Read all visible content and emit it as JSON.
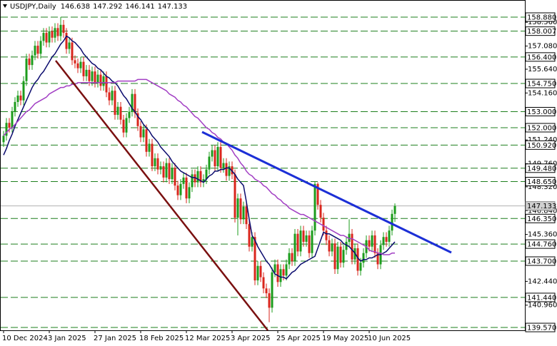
{
  "chart_data": {
    "type": "candlestick",
    "title": "USDJPY,Daily",
    "categories": [
      "10 Dec 2024",
      null,
      null,
      null,
      null,
      null,
      null,
      null,
      null,
      null,
      null,
      null,
      null,
      null,
      null,
      null,
      "3 Jan 2025",
      null,
      null,
      null,
      null,
      null,
      null,
      null,
      null,
      null,
      null,
      null,
      null,
      null,
      null,
      null,
      "27 Jan 2025",
      null,
      null,
      null,
      null,
      null,
      null,
      null,
      null,
      null,
      null,
      null,
      null,
      null,
      null,
      null,
      "18 Feb 2025",
      null,
      null,
      null,
      null,
      null,
      null,
      null,
      null,
      null,
      null,
      null,
      null,
      null,
      null,
      null,
      "12 Mar 2025",
      null,
      null,
      null,
      null,
      null,
      null,
      null,
      null,
      null,
      null,
      null,
      null,
      null,
      null,
      null,
      "3 Apr 2025",
      null,
      null,
      null,
      null,
      null,
      null,
      null,
      null,
      null,
      null,
      null,
      null,
      null,
      null,
      null,
      "25 Apr 2025",
      null,
      null,
      null,
      null,
      null,
      null,
      null,
      null,
      null,
      null,
      null,
      null,
      null,
      null,
      null,
      "19 May 2025",
      null,
      null,
      null,
      null,
      null,
      null,
      null,
      null,
      null,
      null,
      null,
      null,
      null,
      null,
      null,
      "10 Jun 2025",
      null,
      null,
      null,
      null,
      null,
      null,
      null,
      null,
      null
    ],
    "open": [
      151.1,
      151.5,
      152.3,
      152.0,
      153.0,
      153.6,
      154.0,
      153.7,
      154.9,
      156.3,
      155.9,
      156.5,
      157.1,
      156.6,
      157.4,
      157.9,
      157.3,
      158.0,
      157.6,
      158.2,
      157.7,
      158.4,
      157.9,
      156.9,
      157.3,
      156.2,
      156.0,
      155.7,
      156.1,
      155.2,
      155.6,
      154.9,
      155.5,
      154.8,
      155.3,
      154.6,
      155.2,
      154.2,
      153.7,
      154.3,
      152.8,
      153.3,
      152.5,
      151.7,
      152.6,
      153.0,
      154.1,
      152.9,
      152.1,
      151.4,
      151.9,
      150.5,
      151.0,
      149.6,
      150.1,
      149.4,
      149.6,
      148.9,
      149.8,
      148.8,
      149.5,
      148.4,
      147.8,
      148.5,
      148.9,
      147.6,
      148.3,
      149.1,
      148.6,
      149.3,
      148.6,
      148.8,
      149.4,
      150.2,
      150.6,
      149.6,
      150.8,
      149.5,
      149.8,
      149.0,
      149.6,
      149.1,
      146.4,
      147.6,
      146.3,
      147.1,
      146.0,
      144.6,
      145.2,
      142.5,
      143.4,
      142.7,
      142.0,
      141.7,
      140.8,
      143.0,
      143.5,
      142.4,
      143.2,
      142.8,
      143.5,
      144.2,
      143.7,
      145.4,
      144.3,
      145.6,
      144.9,
      145.3,
      144.2,
      145.6,
      148.5,
      147.2,
      146.4,
      145.6,
      145.0,
      144.3,
      144.8,
      143.2,
      144.6,
      143.6,
      144.4,
      144.9,
      145.4,
      143.8,
      144.5,
      143.1,
      143.6,
      144.2,
      145.0,
      144.6,
      145.3,
      144.2,
      143.5,
      144.7,
      145.2,
      144.9,
      145.6,
      146.638
    ],
    "high": [
      151.8,
      152.6,
      152.6,
      153.3,
      153.9,
      154.3,
      154.3,
      155.2,
      156.6,
      156.6,
      156.8,
      157.4,
      157.4,
      157.7,
      158.2,
      158.2,
      158.3,
      158.3,
      158.5,
      158.5,
      158.88,
      158.7,
      158.2,
      157.6,
      157.6,
      156.5,
      156.3,
      156.4,
      156.4,
      155.9,
      155.9,
      155.8,
      155.8,
      155.6,
      155.6,
      155.5,
      155.5,
      154.5,
      154.6,
      154.6,
      153.6,
      153.6,
      152.8,
      152.9,
      153.3,
      154.4,
      154.4,
      153.2,
      152.4,
      152.2,
      152.2,
      151.3,
      151.3,
      150.4,
      150.4,
      149.9,
      149.9,
      150.1,
      150.1,
      149.8,
      149.8,
      148.7,
      148.8,
      149.2,
      149.2,
      148.6,
      149.4,
      149.4,
      149.6,
      149.6,
      149.1,
      149.7,
      150.5,
      150.9,
      150.9,
      151.1,
      151.1,
      150.1,
      150.1,
      149.9,
      149.9,
      149.4,
      147.9,
      147.9,
      147.4,
      147.4,
      146.3,
      145.5,
      145.5,
      143.7,
      143.7,
      143.0,
      142.3,
      142.0,
      143.3,
      143.8,
      143.8,
      143.5,
      143.5,
      143.8,
      144.5,
      144.5,
      145.7,
      145.7,
      145.9,
      145.9,
      145.6,
      145.6,
      145.9,
      148.65,
      148.6,
      147.5,
      146.7,
      145.9,
      145.3,
      145.1,
      145.1,
      144.9,
      144.9,
      144.7,
      145.2,
      146.3,
      145.7,
      144.8,
      144.8,
      143.9,
      144.5,
      145.3,
      145.3,
      145.6,
      145.6,
      144.5,
      145.0,
      145.5,
      145.5,
      145.9,
      146.9,
      147.292
    ],
    "low": [
      150.8,
      151.2,
      151.7,
      151.7,
      152.7,
      153.3,
      153.4,
      153.4,
      154.6,
      155.6,
      155.6,
      156.2,
      156.3,
      156.3,
      157.1,
      157.0,
      157.0,
      157.3,
      157.3,
      157.4,
      157.4,
      157.6,
      156.6,
      156.6,
      155.9,
      155.7,
      155.4,
      155.4,
      154.9,
      154.9,
      154.6,
      154.6,
      154.5,
      154.5,
      154.3,
      154.3,
      153.9,
      153.4,
      153.4,
      152.5,
      152.5,
      152.2,
      151.4,
      151.4,
      152.3,
      152.7,
      152.6,
      151.8,
      151.1,
      151.1,
      150.2,
      150.2,
      149.3,
      149.3,
      149.1,
      149.1,
      148.6,
      148.6,
      148.5,
      148.5,
      148.1,
      147.5,
      147.5,
      148.2,
      147.3,
      147.3,
      148.0,
      148.3,
      148.3,
      148.3,
      148.3,
      148.5,
      149.1,
      149.9,
      149.3,
      149.3,
      149.2,
      149.2,
      148.7,
      148.7,
      148.8,
      146.1,
      145.3,
      146.0,
      146.0,
      145.7,
      144.3,
      144.3,
      142.2,
      142.2,
      142.4,
      141.7,
      141.4,
      139.9,
      140.5,
      142.7,
      142.1,
      142.1,
      142.5,
      142.5,
      143.2,
      143.4,
      143.4,
      144.0,
      144.0,
      144.6,
      144.6,
      143.9,
      143.9,
      145.3,
      146.9,
      146.1,
      145.3,
      144.7,
      144.0,
      144.0,
      142.9,
      142.9,
      143.3,
      143.3,
      144.1,
      144.6,
      143.5,
      143.5,
      142.8,
      142.8,
      143.3,
      143.9,
      144.3,
      144.3,
      143.9,
      143.2,
      143.2,
      144.4,
      144.6,
      144.6,
      145.3,
      146.141
    ],
    "close": [
      151.5,
      152.3,
      152.0,
      153.0,
      153.6,
      154.0,
      153.7,
      154.9,
      156.3,
      155.9,
      156.5,
      157.1,
      156.6,
      157.4,
      157.9,
      157.3,
      158.0,
      157.6,
      158.2,
      157.7,
      158.4,
      157.9,
      156.9,
      157.3,
      156.2,
      156.0,
      155.7,
      156.1,
      155.2,
      155.6,
      154.9,
      155.5,
      154.8,
      155.3,
      154.6,
      155.2,
      154.2,
      153.7,
      154.3,
      152.8,
      153.3,
      152.5,
      151.7,
      152.6,
      153.0,
      154.1,
      152.9,
      152.1,
      151.4,
      151.9,
      150.5,
      151.0,
      149.6,
      150.1,
      149.4,
      149.6,
      148.9,
      149.8,
      148.8,
      149.5,
      148.4,
      147.8,
      148.5,
      148.9,
      147.6,
      148.3,
      149.1,
      148.6,
      149.3,
      148.6,
      148.8,
      149.4,
      150.2,
      150.6,
      149.6,
      150.8,
      149.5,
      149.8,
      149.0,
      149.6,
      149.1,
      146.4,
      147.6,
      146.3,
      147.1,
      146.0,
      144.6,
      145.2,
      142.5,
      143.4,
      142.7,
      142.0,
      141.7,
      140.8,
      143.0,
      143.5,
      142.4,
      143.2,
      142.8,
      143.5,
      144.2,
      143.7,
      145.4,
      144.3,
      145.6,
      144.9,
      145.3,
      144.2,
      145.6,
      148.5,
      147.2,
      146.4,
      145.6,
      145.0,
      144.3,
      144.8,
      143.2,
      144.6,
      143.6,
      144.4,
      144.9,
      145.4,
      143.8,
      144.5,
      143.1,
      143.6,
      144.2,
      145.0,
      144.6,
      145.3,
      144.2,
      143.5,
      144.7,
      145.2,
      144.9,
      145.6,
      146.638,
      147.133
    ],
    "up_color": "#1c9c1c",
    "down_color": "#d9261c",
    "moving_averages": [
      {
        "color": "#0b0b6e",
        "values": [
          150.3,
          150.7,
          151.2,
          151.6,
          152.1,
          152.5,
          152.9,
          153.3,
          153.7,
          154.1,
          154.5,
          154.8,
          155.0,
          155.3,
          155.5,
          155.8,
          156.1,
          156.4,
          156.6,
          156.9,
          157.2,
          157.4,
          157.7,
          157.6,
          157.4,
          157.3,
          157.1,
          156.9,
          156.6,
          156.4,
          156.2,
          156.0,
          155.9,
          155.7,
          155.6,
          155.4,
          155.2,
          155.1,
          154.9,
          154.8,
          154.6,
          154.3,
          154.0,
          153.8,
          153.5,
          153.2,
          153.0,
          152.7,
          152.5,
          152.2,
          152.0,
          151.8,
          151.5,
          151.3,
          151.1,
          150.8,
          150.6,
          150.4,
          150.2,
          149.9,
          149.7,
          149.5,
          149.3,
          149.2,
          149.1,
          149.0,
          148.9,
          148.9,
          148.8,
          148.7,
          148.6,
          148.8,
          149.0,
          149.1,
          149.3,
          149.3,
          149.4,
          149.4,
          149.5,
          149.5,
          149.3,
          149.1,
          148.8,
          148.6,
          148.4,
          147.4,
          146.3,
          145.3,
          145.0,
          144.6,
          144.3,
          144.0,
          143.7,
          143.5,
          143.2,
          142.9,
          142.8,
          142.7,
          142.7,
          142.6,
          142.8,
          143.0,
          143.1,
          143.3,
          143.5,
          143.6,
          143.7,
          143.8,
          143.9,
          144.0,
          144.5,
          145.0,
          145.5,
          145.4,
          145.4,
          145.3,
          145.2,
          145.1,
          145.0,
          144.8,
          144.7,
          144.6,
          144.4,
          144.2,
          143.9,
          143.7,
          143.8,
          143.8,
          143.9,
          143.9,
          144.0,
          144.1,
          144.1,
          144.2,
          144.3,
          144.5,
          144.7,
          144.9
        ]
      },
      {
        "color": "#a23fc4",
        "values": [
          151.5,
          151.7,
          151.9,
          152.0,
          152.2,
          152.4,
          152.6,
          152.8,
          153.0,
          153.1,
          153.3,
          153.5,
          153.6,
          153.7,
          153.8,
          153.9,
          154.1,
          154.2,
          154.3,
          154.4,
          154.5,
          154.5,
          154.6,
          154.6,
          154.7,
          154.7,
          154.8,
          154.8,
          154.8,
          154.8,
          154.8,
          154.8,
          154.8,
          154.8,
          154.8,
          154.8,
          154.8,
          154.8,
          154.8,
          154.8,
          154.9,
          154.9,
          154.9,
          154.9,
          154.9,
          154.9,
          154.9,
          155.0,
          155.0,
          155.0,
          155.0,
          154.9,
          154.8,
          154.7,
          154.6,
          154.5,
          154.4,
          154.3,
          154.1,
          154.0,
          153.9,
          153.7,
          153.6,
          153.4,
          153.3,
          153.1,
          152.9,
          152.7,
          152.6,
          152.4,
          152.2,
          152.0,
          151.9,
          151.7,
          151.6,
          151.4,
          151.3,
          151.1,
          151.0,
          150.8,
          150.6,
          150.3,
          150.1,
          149.8,
          149.6,
          149.3,
          149.1,
          149.0,
          148.8,
          148.7,
          148.6,
          148.4,
          148.3,
          148.1,
          147.9,
          147.8,
          147.6,
          147.5,
          147.3,
          147.2,
          147.0,
          146.9,
          146.8,
          146.7,
          146.6,
          146.6,
          146.5,
          146.4,
          146.3,
          146.2,
          146.1,
          146.0,
          145.9,
          145.8,
          145.7,
          145.6,
          145.5,
          145.4,
          145.3,
          145.3,
          145.2,
          145.1,
          145.1,
          145.0,
          144.9,
          144.8,
          144.7,
          144.6,
          144.4,
          144.3,
          144.3,
          144.2,
          144.2,
          144.1,
          144.1,
          144.1,
          144.2,
          144.2
        ]
      }
    ],
    "ylim": [
      139.395,
      159.945
    ],
    "yticks": [
      {
        "value": 158.56,
        "label": "158.560"
      },
      {
        "value": 157.08,
        "label": "157.080"
      },
      {
        "value": 155.64,
        "label": "155.640"
      },
      {
        "value": 154.16,
        "label": "154.160"
      },
      {
        "value": 151.24,
        "label": "151.240"
      },
      {
        "value": 149.76,
        "label": "149.760"
      },
      {
        "value": 148.32,
        "label": "148.320"
      },
      {
        "value": 146.84,
        "label": "146.840"
      },
      {
        "value": 145.36,
        "label": "145.360"
      },
      {
        "value": 142.44,
        "label": "142.440"
      },
      {
        "value": 140.96,
        "label": "140.960"
      }
    ],
    "levels": [
      {
        "value": 158.88,
        "label": "158.880"
      },
      158.007,
      {
        "value": 156.4,
        "label": "156.400"
      },
      {
        "value": 154.75,
        "label": "154.750"
      },
      {
        "value": 153,
        "label": "153.000"
      },
      {
        "value": 152,
        "label": "152.000"
      },
      {
        "value": 150.92,
        "label": "150.920"
      },
      {
        "value": 149.48,
        "label": "149.480"
      },
      {
        "value": 148.65,
        "label": "148.650"
      },
      {
        "value": 146.35,
        "label": "146.350"
      },
      {
        "value": 144.76,
        "label": "144.760"
      },
      {
        "value": 143.7,
        "label": "143.700"
      },
      {
        "value": 141.44,
        "label": "141.440"
      },
      {
        "value": 139.57,
        "label": "139.570"
      }
    ],
    "level_color": "#1e7f1e"
  }
}
